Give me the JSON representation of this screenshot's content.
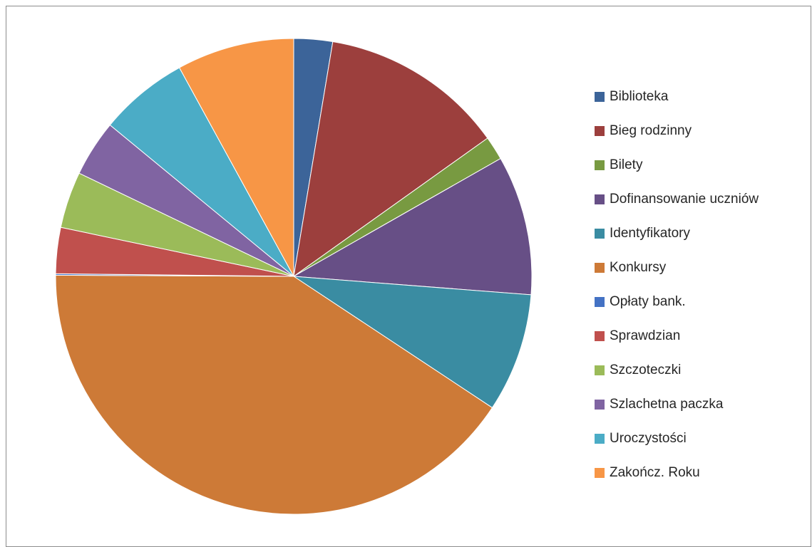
{
  "chart_data": {
    "type": "pie",
    "title": "",
    "legend_position": "right",
    "start_angle_deg": 0,
    "direction": "clockwise",
    "slices": [
      {
        "label": "Biblioteka",
        "value": 2.6,
        "color": "#3C6499"
      },
      {
        "label": "Bieg rodzinny",
        "value": 12.4,
        "color": "#9C3F3D"
      },
      {
        "label": "Bilety",
        "value": 1.6,
        "color": "#789A41"
      },
      {
        "label": "Dofinansowanie uczniów",
        "value": 9.4,
        "color": "#674F86"
      },
      {
        "label": "Identyfikatory",
        "value": 8.0,
        "color": "#3A8CA2"
      },
      {
        "label": "Konkursy",
        "value": 40.4,
        "color": "#CD7A37"
      },
      {
        "label": "Opłaty bank.",
        "value": 0.1,
        "color": "#4472C4"
      },
      {
        "label": "Sprawdzian",
        "value": 3.1,
        "color": "#C0504D"
      },
      {
        "label": "Szczoteczki",
        "value": 3.8,
        "color": "#9BBB59"
      },
      {
        "label": "Szlachetna paczka",
        "value": 3.8,
        "color": "#8064A2"
      },
      {
        "label": "Uroczystości",
        "value": 6.0,
        "color": "#4BACC6"
      },
      {
        "label": "Zakończ. Roku",
        "value": 7.9,
        "color": "#F79646"
      }
    ]
  }
}
